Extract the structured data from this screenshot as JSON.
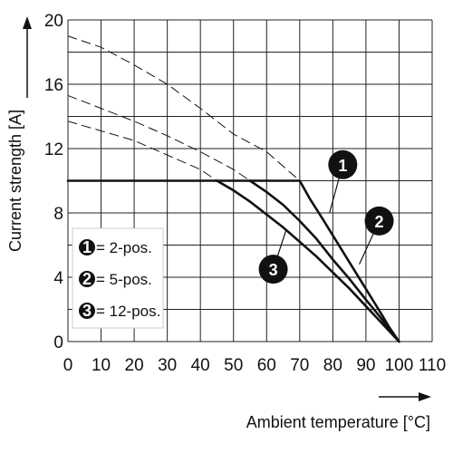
{
  "chart_data": {
    "type": "line",
    "title": "",
    "xlabel": "Ambient temperature [°C]",
    "ylabel": "Current strength [A]",
    "xlim": [
      0,
      110
    ],
    "ylim": [
      0,
      20
    ],
    "xticks": [
      "0",
      "10",
      "20",
      "30",
      "40",
      "50",
      "60",
      "70",
      "80",
      "90",
      "100",
      "110"
    ],
    "yticks": [
      "0",
      "4",
      "8",
      "12",
      "16",
      "20"
    ],
    "grid": true,
    "legend_position": "bottom-left",
    "legend": [
      {
        "marker": "1",
        "label": "= 2-pos."
      },
      {
        "marker": "2",
        "label": "= 5-pos."
      },
      {
        "marker": "3",
        "label": "= 12-pos."
      }
    ],
    "series": [
      {
        "marker": "1",
        "style": "solid",
        "x": [
          0,
          70,
          73,
          77,
          80,
          83,
          86,
          89,
          92,
          95,
          97,
          99,
          100
        ],
        "y": [
          10,
          10,
          8.9,
          7.6,
          6.6,
          5.6,
          4.6,
          3.6,
          2.6,
          1.6,
          0.9,
          0.3,
          0
        ]
      },
      {
        "marker": "2",
        "style": "solid",
        "x": [
          55,
          60,
          65,
          70,
          75,
          80,
          85,
          90,
          94,
          97,
          100
        ],
        "y": [
          10,
          9.3,
          8.5,
          7.5,
          6.4,
          5.1,
          3.9,
          2.6,
          1.6,
          0.8,
          0
        ]
      },
      {
        "marker": "3",
        "style": "solid",
        "x": [
          45,
          50,
          55,
          60,
          65,
          70,
          75,
          80,
          85,
          90,
          95,
          100
        ],
        "y": [
          10,
          9.4,
          8.7,
          7.9,
          7.1,
          6.2,
          5.3,
          4.3,
          3.3,
          2.2,
          1.1,
          0
        ]
      },
      {
        "marker": "1",
        "style": "dashed",
        "x": [
          0,
          10,
          20,
          30,
          40,
          50,
          60,
          70
        ],
        "y": [
          19,
          18.3,
          17.2,
          16.0,
          14.5,
          12.9,
          11.8,
          10
        ]
      },
      {
        "marker": "2",
        "style": "dashed",
        "x": [
          0,
          10,
          20,
          30,
          40,
          50,
          55
        ],
        "y": [
          15.3,
          14.5,
          13.7,
          12.8,
          11.8,
          10.7,
          10
        ]
      },
      {
        "marker": "3",
        "style": "dashed",
        "x": [
          0,
          10,
          20,
          30,
          40,
          45
        ],
        "y": [
          13.7,
          13.1,
          12.5,
          11.6,
          10.7,
          10
        ]
      }
    ],
    "annotations": [
      {
        "marker": "1",
        "x": 83,
        "y": 11,
        "leader_to": [
          79,
          8
        ]
      },
      {
        "marker": "2",
        "x": 94,
        "y": 7.5,
        "leader_to": [
          88,
          4.8
        ]
      },
      {
        "marker": "3",
        "x": 62,
        "y": 4.5,
        "leader_to": [
          66,
          7.0
        ]
      }
    ]
  }
}
